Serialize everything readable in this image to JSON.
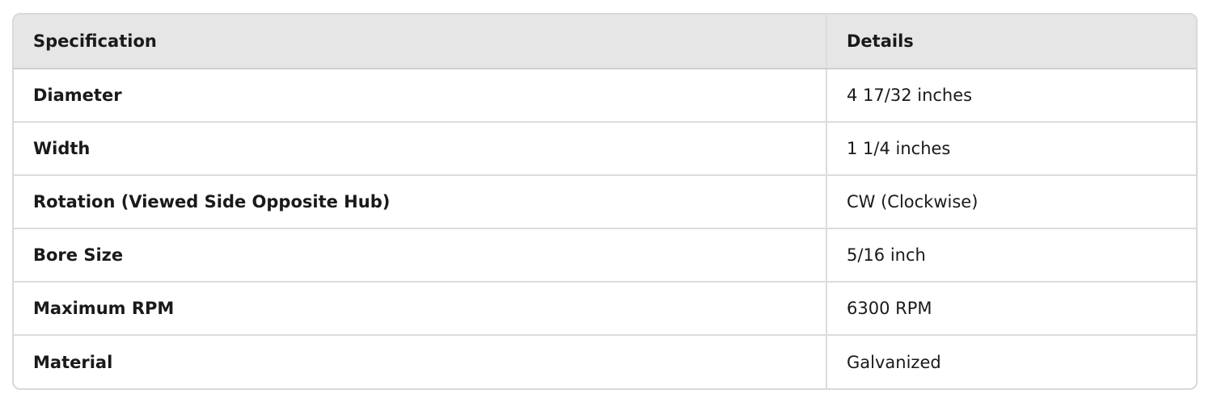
{
  "table": {
    "headers": [
      "Specification",
      "Details"
    ],
    "rows": [
      [
        "Diameter",
        "4 17/32 inches"
      ],
      [
        "Width",
        "1 1/4 inches"
      ],
      [
        "Rotation (Viewed Side Opposite Hub)",
        "CW (Clockwise)"
      ],
      [
        "Bore Size",
        "5/16 inch"
      ],
      [
        "Maximum RPM",
        "6300 RPM"
      ],
      [
        "Material",
        "Galvanized"
      ]
    ]
  }
}
